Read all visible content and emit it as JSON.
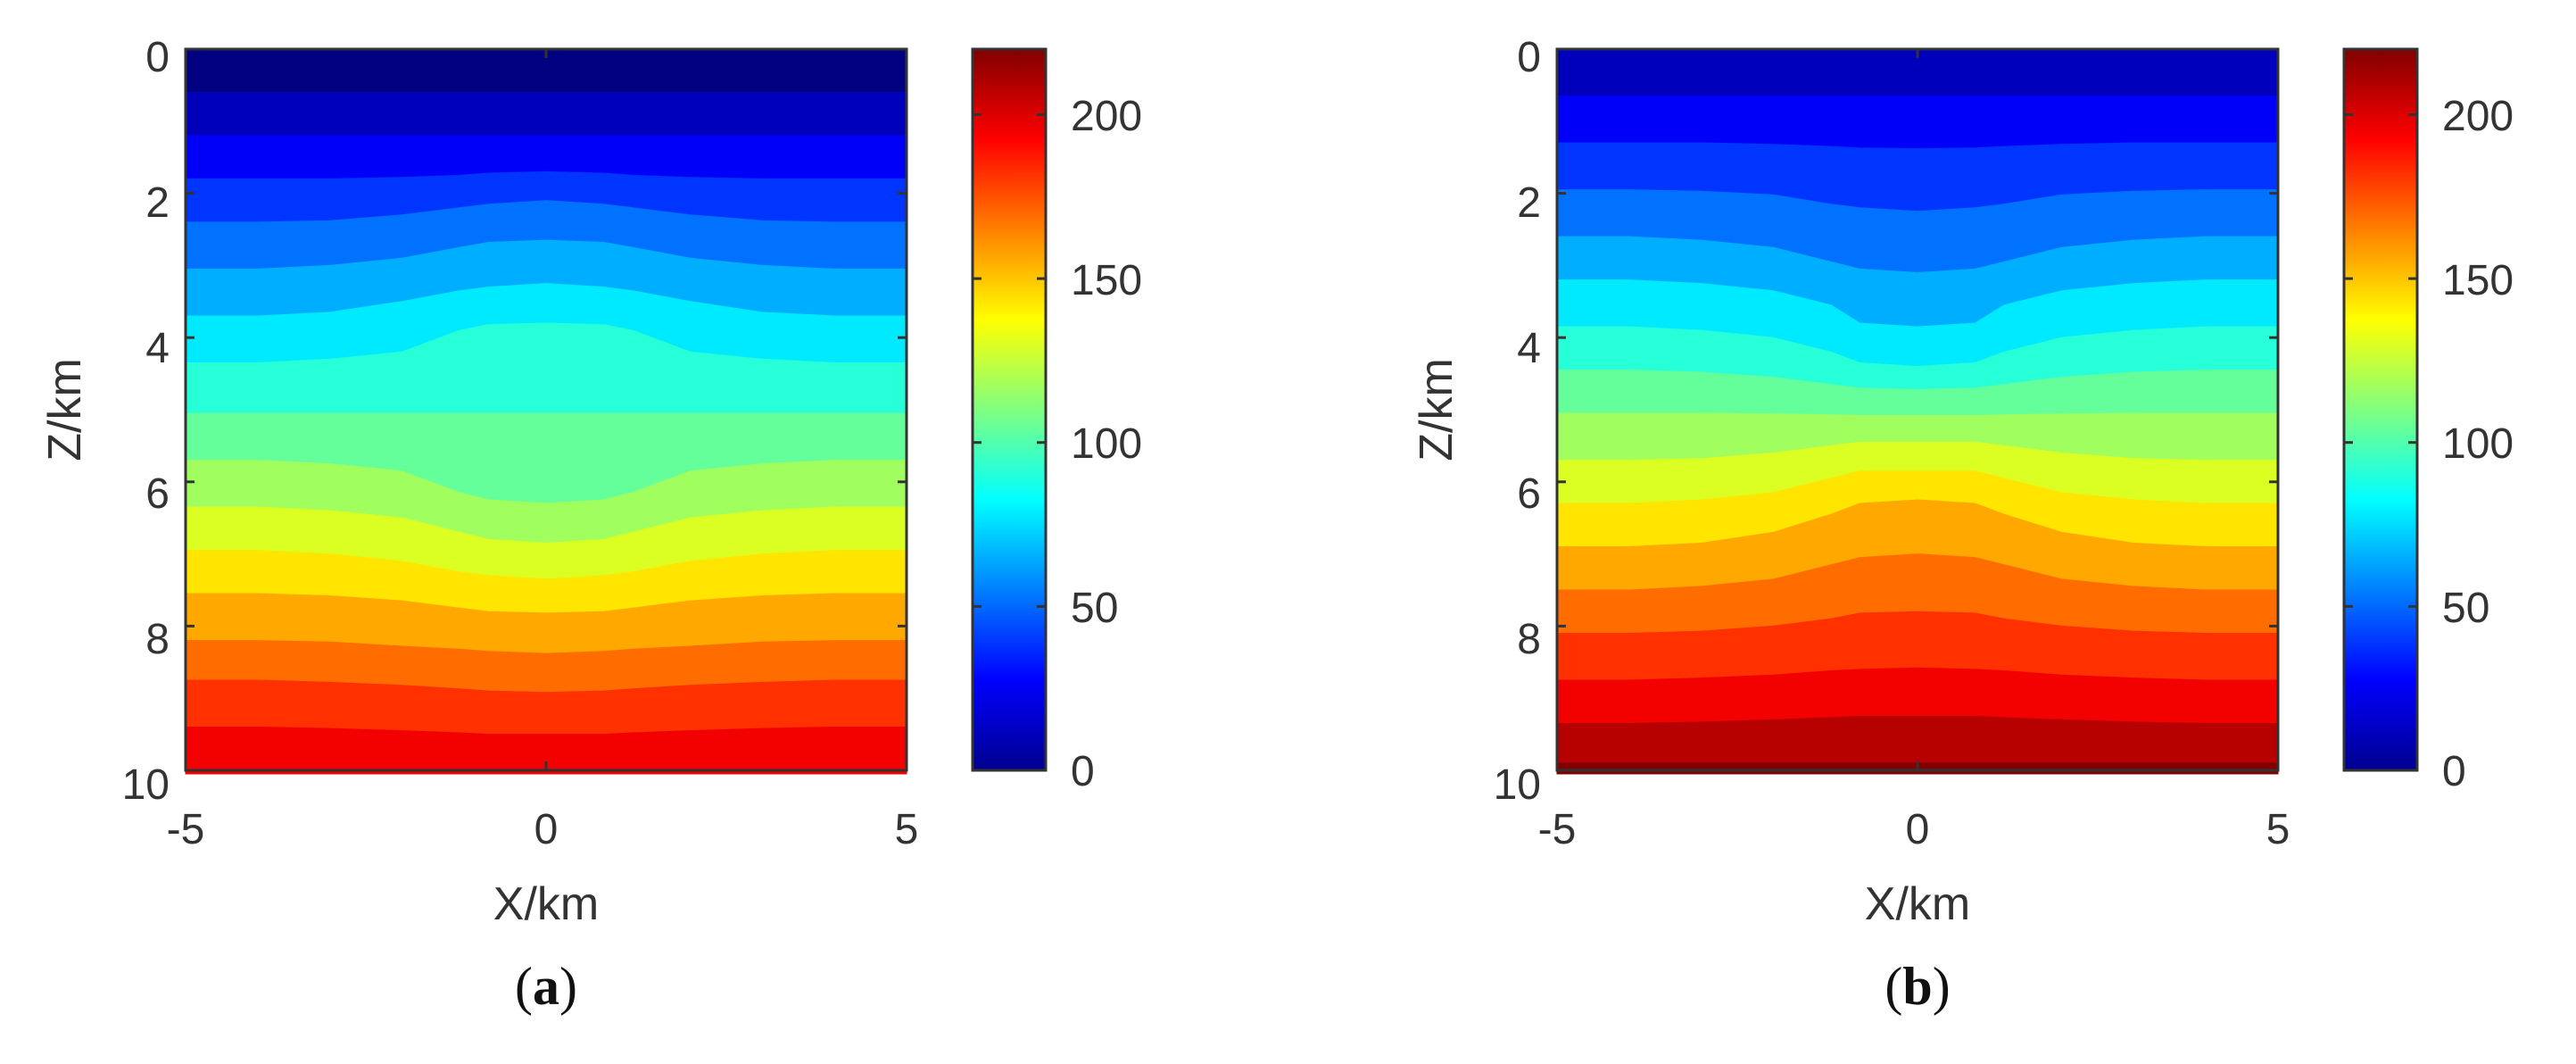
{
  "chart_data": [
    {
      "type": "heatmap",
      "panel_label": "a",
      "xlabel": "X/km",
      "ylabel": "Z/km",
      "xlim": [
        -5,
        5
      ],
      "ylim": [
        0,
        10
      ],
      "y_reversed": true,
      "x_ticks": [
        "-5",
        "0",
        "5"
      ],
      "y_ticks": [
        "0",
        "2",
        "4",
        "6",
        "8",
        "10"
      ],
      "colorbar": {
        "range": [
          0,
          220
        ],
        "ticks": [
          "0",
          "50",
          "100",
          "150",
          "200"
        ],
        "colormap": "jet"
      },
      "x": [
        -5,
        -4,
        -3,
        -2,
        -1.2,
        -0.8,
        0,
        0.8,
        1.2,
        2,
        3,
        4,
        5
      ],
      "contour_levels": [
        {
          "value": 0,
          "depth": [
            0,
            0,
            0,
            0,
            0,
            0,
            0,
            0,
            0,
            0,
            0,
            0,
            0
          ]
        },
        {
          "value": 13,
          "depth": [
            0.6,
            0.6,
            0.6,
            0.6,
            0.6,
            0.6,
            0.6,
            0.6,
            0.6,
            0.6,
            0.6,
            0.6,
            0.6
          ]
        },
        {
          "value": 26,
          "depth": [
            1.2,
            1.2,
            1.2,
            1.2,
            1.2,
            1.2,
            1.2,
            1.2,
            1.2,
            1.2,
            1.2,
            1.2,
            1.2
          ]
        },
        {
          "value": 39,
          "depth": [
            1.8,
            1.8,
            1.8,
            1.78,
            1.75,
            1.72,
            1.7,
            1.72,
            1.75,
            1.78,
            1.8,
            1.8,
            1.8
          ]
        },
        {
          "value": 52,
          "depth": [
            2.4,
            2.4,
            2.38,
            2.3,
            2.2,
            2.15,
            2.1,
            2.15,
            2.2,
            2.3,
            2.38,
            2.4,
            2.4
          ]
        },
        {
          "value": 65,
          "depth": [
            3.05,
            3.05,
            3.0,
            2.9,
            2.75,
            2.68,
            2.65,
            2.68,
            2.75,
            2.9,
            3.0,
            3.05,
            3.05
          ]
        },
        {
          "value": 78,
          "depth": [
            3.7,
            3.7,
            3.65,
            3.5,
            3.35,
            3.3,
            3.25,
            3.3,
            3.35,
            3.5,
            3.65,
            3.7,
            3.7
          ]
        },
        {
          "value": 91,
          "depth": [
            4.35,
            4.35,
            4.3,
            4.2,
            3.9,
            3.82,
            3.8,
            3.82,
            3.9,
            4.2,
            4.3,
            4.35,
            4.35
          ]
        },
        {
          "value": 104,
          "depth": [
            5.05,
            5.05,
            5.05,
            5.05,
            5.05,
            5.05,
            5.05,
            5.05,
            5.05,
            5.05,
            5.05,
            5.05,
            5.05
          ]
        },
        {
          "value": 117,
          "depth": [
            5.7,
            5.7,
            5.75,
            5.85,
            6.15,
            6.25,
            6.3,
            6.25,
            6.15,
            5.85,
            5.75,
            5.7,
            5.7
          ]
        },
        {
          "value": 130,
          "depth": [
            6.35,
            6.35,
            6.4,
            6.5,
            6.7,
            6.8,
            6.85,
            6.8,
            6.7,
            6.5,
            6.4,
            6.35,
            6.35
          ]
        },
        {
          "value": 143,
          "depth": [
            6.95,
            6.95,
            7.0,
            7.1,
            7.25,
            7.3,
            7.35,
            7.3,
            7.25,
            7.1,
            7.0,
            6.95,
            6.95
          ]
        },
        {
          "value": 156,
          "depth": [
            7.55,
            7.55,
            7.58,
            7.65,
            7.75,
            7.8,
            7.82,
            7.8,
            7.75,
            7.65,
            7.58,
            7.55,
            7.55
          ]
        },
        {
          "value": 169,
          "depth": [
            8.2,
            8.2,
            8.22,
            8.28,
            8.32,
            8.35,
            8.38,
            8.35,
            8.32,
            8.28,
            8.22,
            8.2,
            8.2
          ]
        },
        {
          "value": 182,
          "depth": [
            8.75,
            8.75,
            8.78,
            8.82,
            8.87,
            8.9,
            8.92,
            8.9,
            8.87,
            8.82,
            8.78,
            8.75,
            8.75
          ]
        },
        {
          "value": 195,
          "depth": [
            9.4,
            9.4,
            9.42,
            9.45,
            9.48,
            9.5,
            9.5,
            9.5,
            9.48,
            9.45,
            9.42,
            9.4,
            9.4
          ]
        }
      ]
    },
    {
      "type": "heatmap",
      "panel_label": "b",
      "xlabel": "X/km",
      "ylabel": "Z/km",
      "xlim": [
        -5,
        5
      ],
      "ylim": [
        0,
        10
      ],
      "y_reversed": true,
      "x_ticks": [
        "-5",
        "0",
        "5"
      ],
      "y_ticks": [
        "0",
        "2",
        "4",
        "6",
        "8",
        "10"
      ],
      "colorbar": {
        "range": [
          0,
          220
        ],
        "ticks": [
          "0",
          "50",
          "100",
          "150",
          "200"
        ],
        "colormap": "jet"
      },
      "x": [
        -5,
        -4,
        -3,
        -2,
        -1.2,
        -0.8,
        0,
        0.8,
        1.2,
        2,
        3,
        4,
        5
      ],
      "contour_levels": [
        {
          "value": 13,
          "depth": [
            0,
            0,
            0,
            0,
            0,
            0,
            0,
            0,
            0,
            0,
            0,
            0,
            0
          ]
        },
        {
          "value": 26,
          "depth": [
            0.65,
            0.65,
            0.65,
            0.65,
            0.65,
            0.65,
            0.65,
            0.65,
            0.65,
            0.65,
            0.65,
            0.65,
            0.65
          ]
        },
        {
          "value": 39,
          "depth": [
            1.3,
            1.3,
            1.3,
            1.32,
            1.35,
            1.37,
            1.38,
            1.37,
            1.35,
            1.32,
            1.3,
            1.3,
            1.3
          ]
        },
        {
          "value": 52,
          "depth": [
            1.95,
            1.95,
            1.97,
            2.02,
            2.15,
            2.2,
            2.25,
            2.2,
            2.15,
            2.02,
            1.97,
            1.95,
            1.95
          ]
        },
        {
          "value": 65,
          "depth": [
            2.6,
            2.6,
            2.65,
            2.75,
            2.95,
            3.05,
            3.1,
            3.05,
            2.95,
            2.75,
            2.65,
            2.6,
            2.6
          ]
        },
        {
          "value": 78,
          "depth": [
            3.2,
            3.2,
            3.25,
            3.35,
            3.55,
            3.8,
            3.85,
            3.8,
            3.55,
            3.35,
            3.25,
            3.2,
            3.2
          ]
        },
        {
          "value": 91,
          "depth": [
            3.85,
            3.85,
            3.9,
            4.0,
            4.2,
            4.35,
            4.4,
            4.35,
            4.2,
            4.0,
            3.9,
            3.85,
            3.85
          ]
        },
        {
          "value": 104,
          "depth": [
            4.45,
            4.45,
            4.48,
            4.55,
            4.65,
            4.7,
            4.72,
            4.7,
            4.65,
            4.55,
            4.48,
            4.45,
            4.45
          ]
        },
        {
          "value": 117,
          "depth": [
            5.05,
            5.05,
            5.05,
            5.06,
            5.07,
            5.08,
            5.08,
            5.08,
            5.07,
            5.06,
            5.05,
            5.05,
            5.05
          ]
        },
        {
          "value": 130,
          "depth": [
            5.7,
            5.7,
            5.68,
            5.6,
            5.5,
            5.45,
            5.45,
            5.45,
            5.5,
            5.6,
            5.68,
            5.7,
            5.7
          ]
        },
        {
          "value": 143,
          "depth": [
            6.3,
            6.3,
            6.25,
            6.15,
            5.95,
            5.85,
            5.85,
            5.85,
            5.95,
            6.15,
            6.25,
            6.3,
            6.3
          ]
        },
        {
          "value": 156,
          "depth": [
            6.9,
            6.9,
            6.85,
            6.7,
            6.45,
            6.3,
            6.25,
            6.3,
            6.45,
            6.7,
            6.85,
            6.9,
            6.9
          ]
        },
        {
          "value": 169,
          "depth": [
            7.5,
            7.5,
            7.45,
            7.35,
            7.15,
            7.05,
            7.0,
            7.05,
            7.15,
            7.35,
            7.45,
            7.5,
            7.5
          ]
        },
        {
          "value": 182,
          "depth": [
            8.1,
            8.1,
            8.07,
            8.0,
            7.9,
            7.82,
            7.8,
            7.82,
            7.9,
            8.0,
            8.07,
            8.1,
            8.1
          ]
        },
        {
          "value": 195,
          "depth": [
            8.75,
            8.75,
            8.72,
            8.68,
            8.62,
            8.6,
            8.58,
            8.6,
            8.62,
            8.68,
            8.72,
            8.75,
            8.75
          ]
        },
        {
          "value": 208,
          "depth": [
            9.35,
            9.35,
            9.33,
            9.3,
            9.27,
            9.25,
            9.25,
            9.25,
            9.27,
            9.3,
            9.33,
            9.35,
            9.35
          ]
        },
        {
          "value": 220,
          "depth": [
            9.9,
            9.9,
            9.9,
            9.9,
            9.9,
            9.9,
            9.9,
            9.9,
            9.9,
            9.9,
            9.9,
            9.9,
            9.9
          ]
        }
      ]
    }
  ]
}
